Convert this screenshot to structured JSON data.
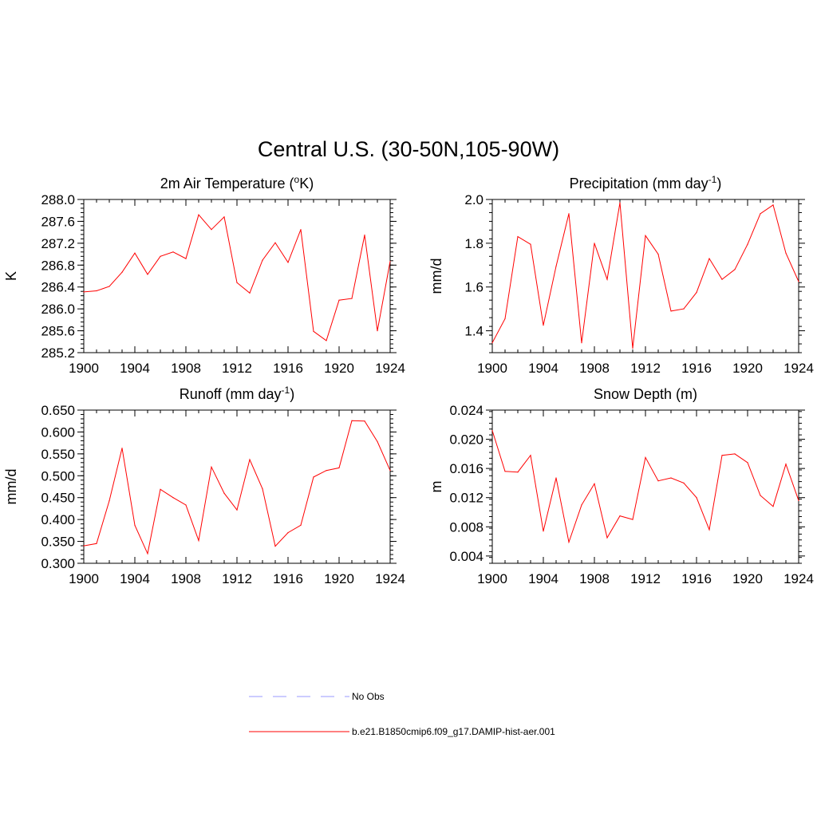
{
  "figure": {
    "title": "Central U.S. (30-50N,105-90W)"
  },
  "legend": {
    "entries": [
      {
        "label": "No Obs",
        "color": "#9999ff",
        "style": "dashed"
      },
      {
        "label": "b.e21.B1850cmip6.f09_g17.DAMIP-hist-aer.001",
        "color": "#ff0000",
        "style": "solid"
      }
    ]
  },
  "chart_data": [
    {
      "type": "line",
      "title": "2m Air Temperature (",
      "title_sup": "o",
      "title_after": "K)",
      "xlabel": "",
      "ylabel": "K",
      "xlim": [
        1900,
        1924
      ],
      "ylim": [
        285.2,
        288.0
      ],
      "x_ticks": [
        "1900",
        "1904",
        "1908",
        "1912",
        "1916",
        "1920",
        "1924"
      ],
      "y_ticks": [
        "285.2",
        "285.6",
        "286.0",
        "286.4",
        "286.8",
        "287.2",
        "287.6",
        "288.0"
      ],
      "series_color": "#ff0000",
      "x": [
        1900,
        1901,
        1902,
        1903,
        1904,
        1905,
        1906,
        1907,
        1908,
        1909,
        1910,
        1911,
        1912,
        1913,
        1914,
        1915,
        1916,
        1917,
        1918,
        1919,
        1920,
        1921,
        1922,
        1923,
        1924
      ],
      "series": [
        {
          "values": [
            286.31,
            286.33,
            286.41,
            286.67,
            287.02,
            286.63,
            286.96,
            287.04,
            286.92,
            287.72,
            287.45,
            287.68,
            286.48,
            286.29,
            286.89,
            287.21,
            286.85,
            287.45,
            285.59,
            285.42,
            286.16,
            286.19,
            287.35,
            285.6,
            286.87
          ]
        }
      ]
    },
    {
      "type": "line",
      "title": "Precipitation (mm day",
      "title_sup": "-1",
      "title_after": ")",
      "xlabel": "",
      "ylabel": "mm/d",
      "xlim": [
        1900,
        1924
      ],
      "ylim": [
        1.3,
        2.0
      ],
      "x_ticks": [
        "1900",
        "1904",
        "1908",
        "1912",
        "1916",
        "1920",
        "1924"
      ],
      "y_ticks": [
        "1.4",
        "1.6",
        "1.8",
        "2.0"
      ],
      "series_color": "#ff0000",
      "x": [
        1900,
        1901,
        1902,
        1903,
        1904,
        1905,
        1906,
        1907,
        1908,
        1909,
        1910,
        1911,
        1912,
        1913,
        1914,
        1915,
        1916,
        1917,
        1918,
        1919,
        1920,
        1921,
        1922,
        1923,
        1924
      ],
      "series": [
        {
          "values": [
            1.345,
            1.455,
            1.83,
            1.795,
            1.425,
            1.695,
            1.935,
            1.345,
            1.8,
            1.635,
            1.985,
            1.32,
            1.835,
            1.75,
            1.49,
            1.5,
            1.575,
            1.73,
            1.635,
            1.68,
            1.795,
            1.935,
            1.975,
            1.755,
            1.625
          ]
        }
      ]
    },
    {
      "type": "line",
      "title": "Runoff (mm day",
      "title_sup": "-1",
      "title_after": ")",
      "xlabel": "",
      "ylabel": "mm/d",
      "xlim": [
        1900,
        1924
      ],
      "ylim": [
        0.3,
        0.65
      ],
      "x_ticks": [
        "1900",
        "1904",
        "1908",
        "1912",
        "1916",
        "1920",
        "1924"
      ],
      "y_ticks": [
        "0.300",
        "0.350",
        "0.400",
        "0.450",
        "0.500",
        "0.550",
        "0.600",
        "0.650"
      ],
      "series_color": "#ff0000",
      "x": [
        1900,
        1901,
        1902,
        1903,
        1904,
        1905,
        1906,
        1907,
        1908,
        1909,
        1910,
        1911,
        1912,
        1913,
        1914,
        1915,
        1916,
        1917,
        1918,
        1919,
        1920,
        1921,
        1922,
        1923,
        1924
      ],
      "series": [
        {
          "values": [
            0.34,
            0.345,
            0.443,
            0.563,
            0.387,
            0.322,
            0.469,
            0.45,
            0.433,
            0.352,
            0.52,
            0.46,
            0.422,
            0.537,
            0.47,
            0.339,
            0.37,
            0.387,
            0.497,
            0.512,
            0.518,
            0.626,
            0.625,
            0.578,
            0.512
          ]
        }
      ]
    },
    {
      "type": "line",
      "title": "Snow Depth (m)",
      "title_sup": "",
      "title_after": "",
      "xlabel": "",
      "ylabel": "m",
      "xlim": [
        1900,
        1924
      ],
      "ylim": [
        0.003,
        0.024
      ],
      "x_ticks": [
        "1900",
        "1904",
        "1908",
        "1912",
        "1916",
        "1920",
        "1924"
      ],
      "y_ticks": [
        "0.004",
        "0.008",
        "0.012",
        "0.016",
        "0.020",
        "0.024"
      ],
      "series_color": "#ff0000",
      "x": [
        1900,
        1901,
        1902,
        1903,
        1904,
        1905,
        1906,
        1907,
        1908,
        1909,
        1910,
        1911,
        1912,
        1913,
        1914,
        1915,
        1916,
        1917,
        1918,
        1919,
        1920,
        1921,
        1922,
        1923,
        1924
      ],
      "series": [
        {
          "values": [
            0.0212,
            0.0156,
            0.0155,
            0.0178,
            0.0074,
            0.0147,
            0.0059,
            0.011,
            0.0139,
            0.0065,
            0.0095,
            0.009,
            0.0175,
            0.0143,
            0.0147,
            0.014,
            0.012,
            0.0076,
            0.0178,
            0.018,
            0.0168,
            0.0123,
            0.0108,
            0.0166,
            0.0116
          ]
        }
      ]
    }
  ]
}
